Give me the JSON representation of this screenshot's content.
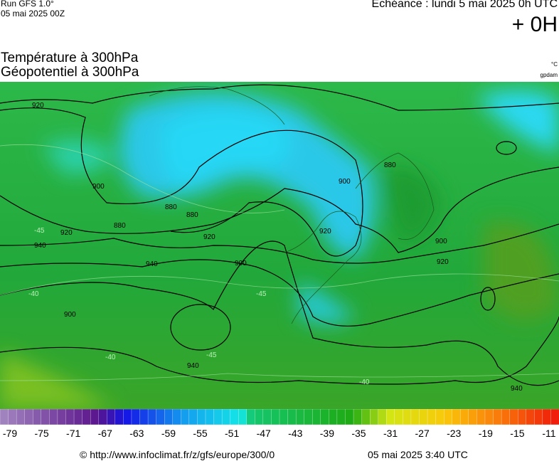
{
  "header": {
    "run": "Run GFS 1.0°",
    "run_date": "05 mai 2025 00Z",
    "forecast": "Echéance : lundi 5 mai 2025 0h UTC",
    "lead": "+ 0H",
    "title_line1": "Température à 300hPa",
    "title_line2": "Géopotentiel à 300hPa",
    "unit_temp": "°C",
    "unit_geo": "gpdam"
  },
  "map": {
    "contour_labels": [
      {
        "text": "920"
      },
      {
        "text": "900"
      },
      {
        "text": "880"
      },
      {
        "text": "880"
      },
      {
        "text": "900"
      },
      {
        "text": "920"
      },
      {
        "text": "940"
      },
      {
        "text": "900"
      },
      {
        "text": "880"
      },
      {
        "text": "900"
      },
      {
        "text": "920"
      },
      {
        "text": "940"
      },
      {
        "text": "920"
      },
      {
        "text": "940"
      },
      {
        "text": "880"
      },
      {
        "text": "900"
      },
      {
        "text": "920"
      },
      {
        "text": "940"
      },
      {
        "text": "-45"
      },
      {
        "text": "-45"
      },
      {
        "text": "-40"
      },
      {
        "text": "-40"
      },
      {
        "text": "-45"
      },
      {
        "text": "-40"
      }
    ]
  },
  "scale": {
    "labels": [
      -79,
      -75,
      -71,
      -67,
      -63,
      -59,
      -55,
      -51,
      -47,
      -43,
      -39,
      -35,
      -31,
      -27,
      -23,
      -19,
      -15,
      -11
    ]
  },
  "footer": {
    "url": "© http://www.infoclimat.fr/z/gfs/europe/300/0",
    "timestamp": "05 mai 2025  3:40 UTC"
  }
}
